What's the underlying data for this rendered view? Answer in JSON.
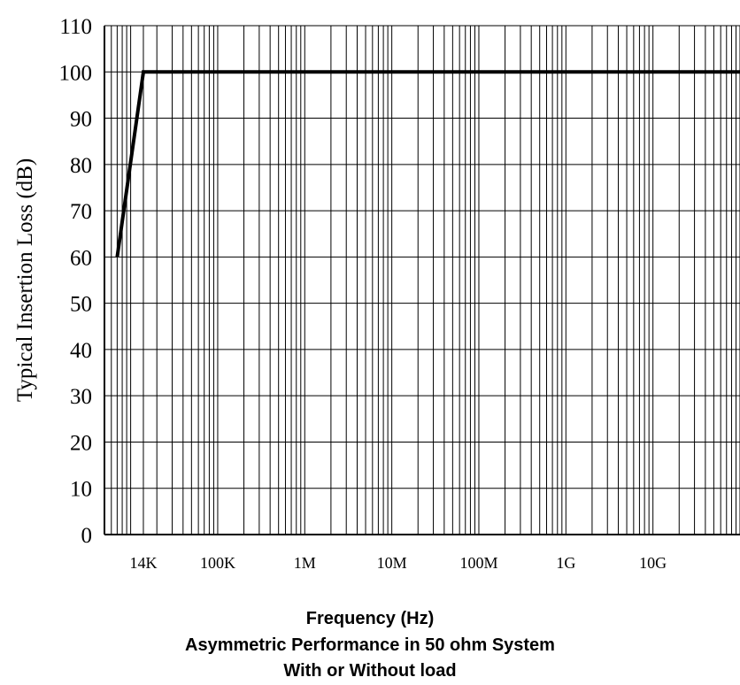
{
  "chart_data": {
    "type": "line",
    "title": "Asymmetric Performance in 50 ohm System",
    "subtitle": "With or Without load",
    "xlabel": "Frequency (Hz)",
    "ylabel": "Typical Insertion Loss (dB)",
    "x_scale": "log",
    "xlim": [
      5000,
      100000000000
    ],
    "ylim": [
      0,
      110
    ],
    "x_ticks": [
      {
        "value": 14000,
        "label": "14K"
      },
      {
        "value": 100000,
        "label": "100K"
      },
      {
        "value": 1000000,
        "label": "1M"
      },
      {
        "value": 10000000,
        "label": "10M"
      },
      {
        "value": 100000000,
        "label": "100M"
      },
      {
        "value": 1000000000,
        "label": "1G"
      },
      {
        "value": 10000000000,
        "label": "10G"
      }
    ],
    "y_ticks": [
      0,
      10,
      20,
      30,
      40,
      50,
      60,
      70,
      80,
      90,
      100,
      110
    ],
    "grid": true,
    "series": [
      {
        "color": "#000000",
        "x": [
          7000,
          14000,
          100000000000
        ],
        "y": [
          60,
          100,
          100
        ]
      }
    ]
  }
}
